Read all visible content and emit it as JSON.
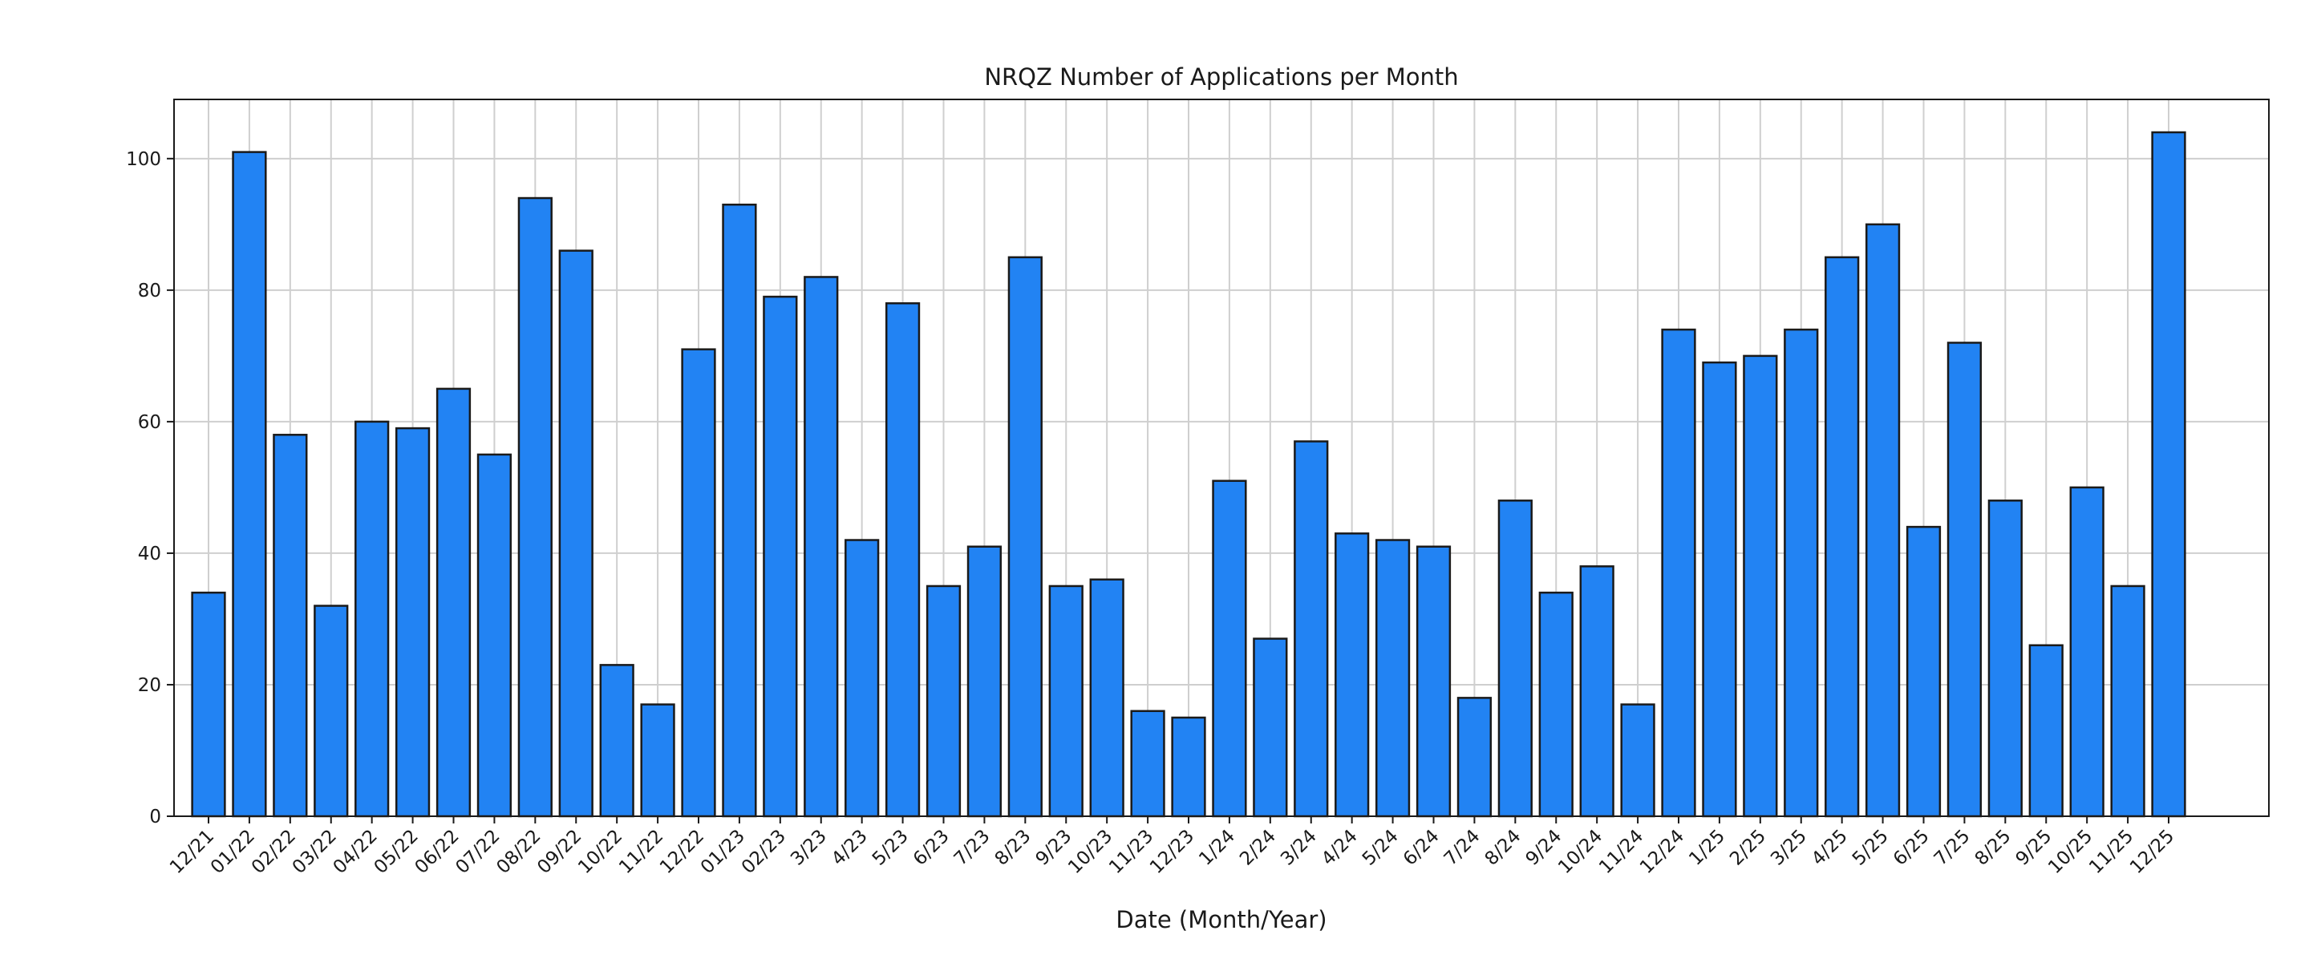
{
  "chart_data": {
    "type": "bar",
    "title": "NRQZ Number of Applications per Month",
    "xlabel": "Date (Month/Year)",
    "ylabel": "",
    "ylim": [
      0,
      109
    ],
    "yticks": [
      0,
      20,
      40,
      60,
      80,
      100
    ],
    "grid": true,
    "categories": [
      "12/21",
      "01/22",
      "02/22",
      "03/22",
      "04/22",
      "05/22",
      "06/22",
      "07/22",
      "08/22",
      "09/22",
      "10/22",
      "11/22",
      "12/22",
      "01/23",
      "02/23",
      "3/23",
      "4/23",
      "5/23",
      "6/23",
      "7/23",
      "8/23",
      "9/23",
      "10/23",
      "11/23",
      "12/23",
      "1/24",
      "2/24",
      "3/24",
      "4/24",
      "5/24",
      "6/24",
      "7/24",
      "8/24",
      "9/24",
      "10/24",
      "11/24",
      "12/24",
      "1/25",
      "2/25",
      "3/25",
      "4/25",
      "5/25",
      "6/25",
      "7/25",
      "8/25",
      "9/25",
      "10/25",
      "11/25",
      "12/25"
    ],
    "values": [
      34,
      101,
      58,
      32,
      60,
      59,
      65,
      55,
      94,
      86,
      23,
      17,
      71,
      93,
      79,
      82,
      42,
      78,
      35,
      41,
      85,
      35,
      36,
      16,
      15,
      51,
      27,
      57,
      43,
      42,
      41,
      18,
      48,
      34,
      38,
      17,
      74,
      69,
      70,
      74,
      85,
      90,
      44,
      72,
      48,
      26,
      50,
      35,
      104
    ],
    "bar_color": "#2283f3",
    "edge_color": "#1a1a1a"
  }
}
